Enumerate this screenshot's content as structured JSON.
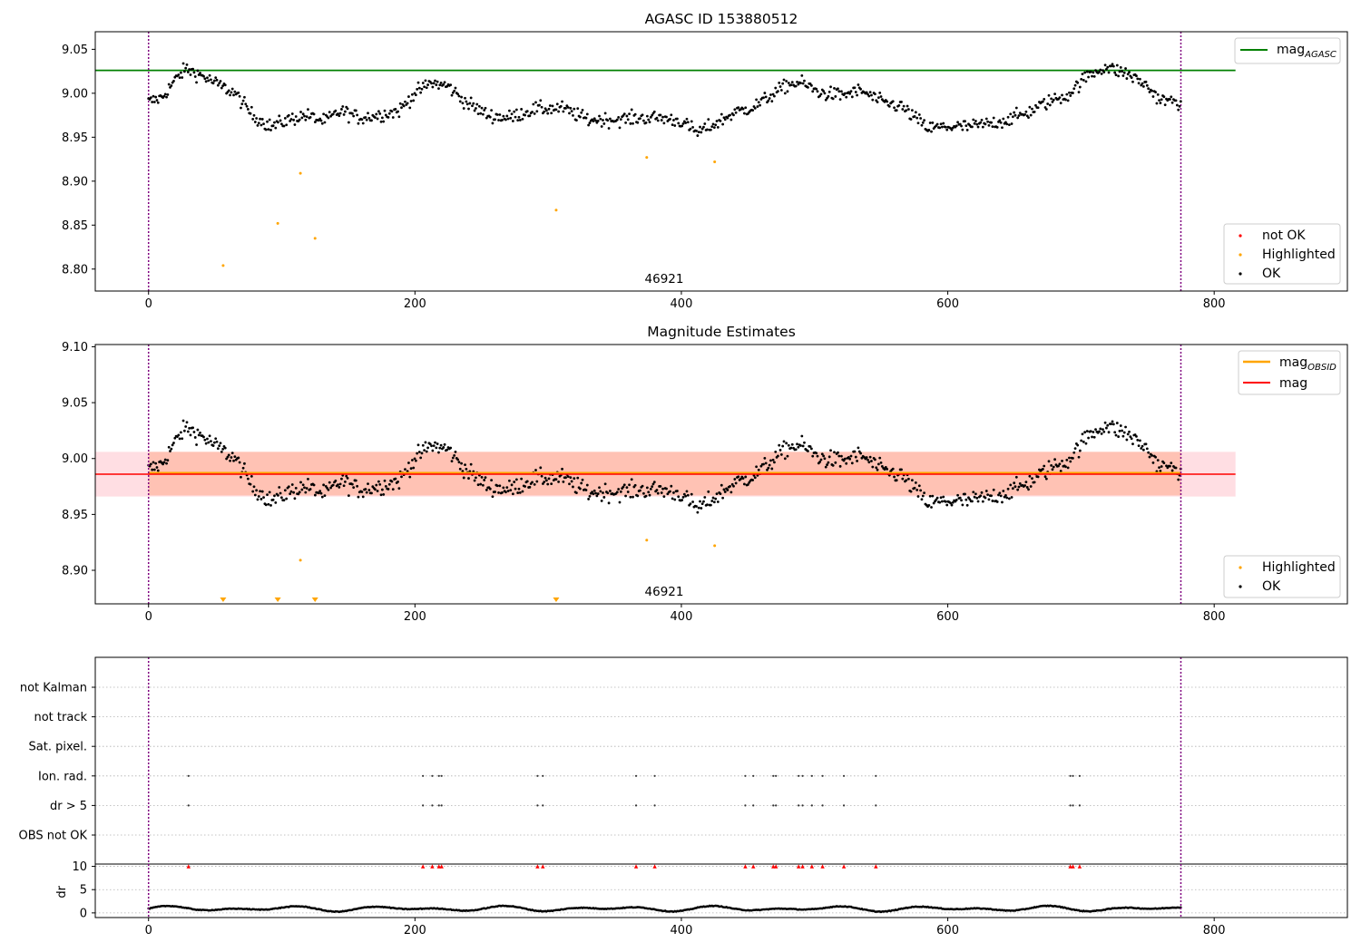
{
  "colors": {
    "ok": "#000000",
    "highlighted": "#ffa500",
    "not_ok": "#ff0000",
    "mag_agasc": "#008000",
    "mag_obsid": "#ffa500",
    "mag": "#ff0000",
    "obs_line": "#800080",
    "band_obsid": "#ffa07a",
    "band_mag": "#ffb6c1",
    "grid": "#b0b0b0"
  },
  "chart_data": [
    {
      "type": "scatter",
      "title": "AGASC ID 153880512",
      "xlim": [
        -40,
        900
      ],
      "ylim": [
        8.775,
        9.07
      ],
      "x_ticks": [
        0,
        200,
        400,
        600,
        800
      ],
      "x_tick_labels": [
        "0",
        "200",
        "400",
        "600",
        "800"
      ],
      "y_ticks": [
        8.8,
        8.85,
        8.9,
        8.95,
        9.0,
        9.05
      ],
      "y_tick_labels": [
        "8.80",
        "8.85",
        "8.90",
        "8.95",
        "9.00",
        "9.05"
      ],
      "obsid_label": "46921",
      "obsid_label_x": 386,
      "obs_boundaries": [
        0,
        775
      ],
      "mag_agasc": 9.026,
      "mag_agasc_range": [
        -40,
        816
      ],
      "series": [
        {
          "name": "not OK",
          "points": []
        },
        {
          "name": "Highlighted",
          "points": [
            [
              56,
              8.804
            ],
            [
              97,
              8.852
            ],
            [
              114,
              8.909
            ],
            [
              125,
              8.835
            ],
            [
              306,
              8.867
            ],
            [
              374,
              8.927
            ],
            [
              425,
              8.922
            ]
          ]
        },
        {
          "name": "OK",
          "trend": [
            [
              0,
              8.99
            ],
            [
              10,
              8.995
            ],
            [
              20,
              9.015
            ],
            [
              28,
              9.028
            ],
            [
              40,
              9.02
            ],
            [
              52,
              9.01
            ],
            [
              65,
              9.0
            ],
            [
              78,
              8.975
            ],
            [
              92,
              8.962
            ],
            [
              105,
              8.97
            ],
            [
              118,
              8.975
            ],
            [
              132,
              8.968
            ],
            [
              145,
              8.98
            ],
            [
              158,
              8.972
            ],
            [
              172,
              8.975
            ],
            [
              188,
              8.98
            ],
            [
              200,
              9.0
            ],
            [
              212,
              9.012
            ],
            [
              225,
              9.008
            ],
            [
              238,
              8.99
            ],
            [
              255,
              8.975
            ],
            [
              270,
              8.972
            ],
            [
              290,
              8.982
            ],
            [
              310,
              8.983
            ],
            [
              330,
              8.97
            ],
            [
              350,
              8.97
            ],
            [
              370,
              8.972
            ],
            [
              385,
              8.972
            ],
            [
              400,
              8.968
            ],
            [
              412,
              8.955
            ],
            [
              425,
              8.965
            ],
            [
              440,
              8.978
            ],
            [
              455,
              8.985
            ],
            [
              470,
              9.0
            ],
            [
              480,
              9.01
            ],
            [
              490,
              9.012
            ],
            [
              505,
              9.0
            ],
            [
              520,
              8.998
            ],
            [
              535,
              9.003
            ],
            [
              550,
              8.99
            ],
            [
              565,
              8.985
            ],
            [
              585,
              8.96
            ],
            [
              600,
              8.962
            ],
            [
              615,
              8.962
            ],
            [
              630,
              8.965
            ],
            [
              645,
              8.97
            ],
            [
              660,
              8.978
            ],
            [
              675,
              8.99
            ],
            [
              690,
              8.998
            ],
            [
              705,
              9.02
            ],
            [
              718,
              9.03
            ],
            [
              735,
              9.022
            ],
            [
              748,
              9.01
            ],
            [
              760,
              8.992
            ],
            [
              775,
              8.99
            ]
          ]
        }
      ],
      "legend": {
        "lines": [
          "mag_AGASC"
        ],
        "points": [
          "not OK",
          "Highlighted",
          "OK"
        ]
      }
    },
    {
      "type": "scatter",
      "title": "Magnitude Estimates",
      "xlim": [
        -40,
        900
      ],
      "ylim": [
        8.87,
        9.102
      ],
      "x_ticks": [
        0,
        200,
        400,
        600,
        800
      ],
      "x_tick_labels": [
        "0",
        "200",
        "400",
        "600",
        "800"
      ],
      "y_ticks": [
        8.9,
        8.95,
        9.0,
        9.05,
        9.1
      ],
      "y_tick_labels": [
        "8.90",
        "8.95",
        "9.00",
        "9.05",
        "9.10"
      ],
      "obsid_label": "46921",
      "obs_boundaries": [
        0,
        775
      ],
      "mag_obsid": 8.987,
      "mag_obsid_band": [
        8.967,
        9.006
      ],
      "mag_obsid_range": [
        0,
        775
      ],
      "mag": 8.986,
      "mag_band": [
        8.966,
        9.006
      ],
      "mag_range": [
        -40,
        816
      ],
      "off_scale_highlighted_x": [
        56,
        97,
        125,
        306
      ],
      "highlighted_in_range": [
        [
          114,
          8.909
        ],
        [
          374,
          8.927
        ],
        [
          425,
          8.922
        ]
      ],
      "legend": {
        "lines": [
          "mag_OBSID",
          "mag"
        ],
        "points": [
          "Highlighted",
          "OK"
        ]
      }
    },
    {
      "type": "scatter",
      "title": "",
      "xlim": [
        -40,
        900
      ],
      "x_ticks": [
        0,
        200,
        400,
        600,
        800
      ],
      "x_tick_labels": [
        "0",
        "200",
        "400",
        "600",
        "800"
      ],
      "flag_rows": [
        "not Kalman",
        "not track",
        "Sat. pixel.",
        "Ion. rad.",
        "dr > 5",
        "OBS not OK"
      ],
      "flag_events_x": [
        30,
        206,
        213,
        218,
        220,
        292,
        296,
        366,
        380,
        448,
        454,
        469,
        471,
        488,
        491,
        498,
        506,
        522,
        546,
        692,
        694,
        699
      ],
      "flag_event_rows": [
        "Ion. rad.",
        "dr > 5"
      ],
      "dr_ylabel": "dr",
      "dr_ylim": [
        -1,
        10.5
      ],
      "dr_y_ticks": [
        0,
        5,
        10
      ],
      "dr_y_tick_labels": [
        "0",
        "5",
        "10"
      ],
      "dr_clipped_value": 10,
      "dr_typical_range": [
        0.2,
        1.6
      ]
    }
  ],
  "legend_labels": {
    "mag_agasc_base": "mag",
    "mag_agasc_sub": "AGASC",
    "mag_obsid_base": "mag",
    "mag_obsid_sub": "OBSID",
    "mag": "mag",
    "not_ok": "not OK",
    "highlighted": "Highlighted",
    "ok": "OK"
  }
}
